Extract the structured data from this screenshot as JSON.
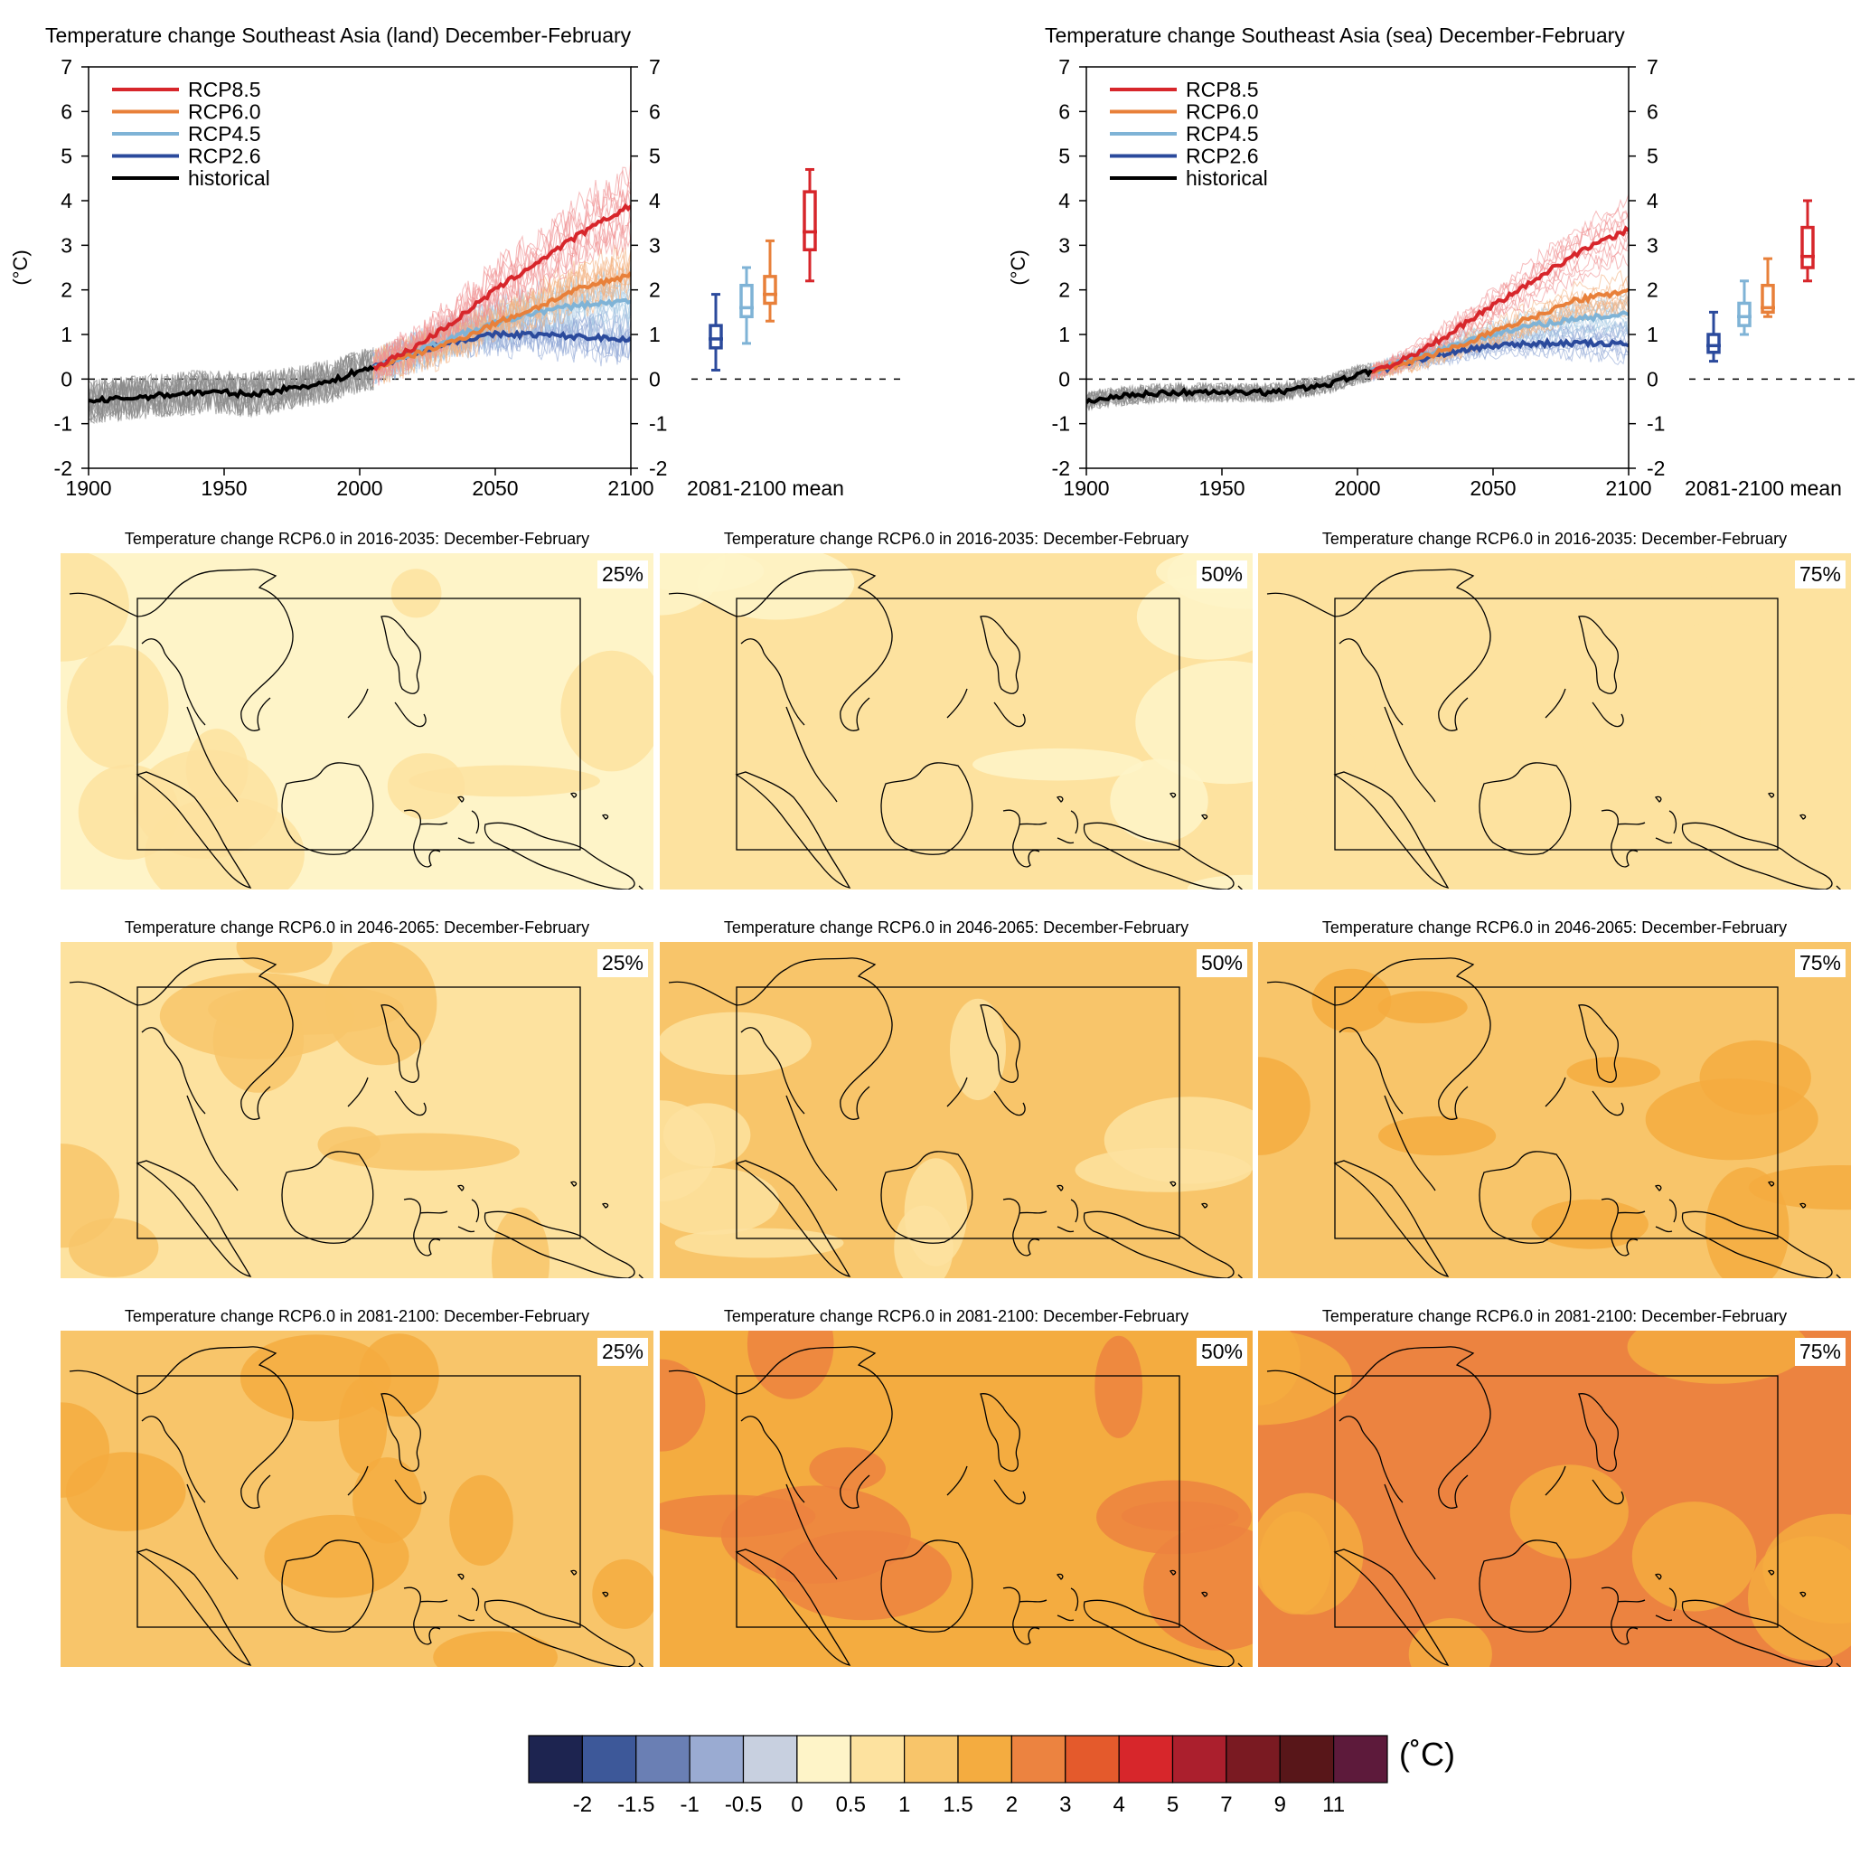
{
  "chart_data": [
    {
      "type": "line",
      "title": "Temperature change Southeast Asia (land) December-February",
      "ylabel": "(°C)",
      "xlim": [
        1900,
        2100
      ],
      "ylim": [
        -2,
        7
      ],
      "xticks": [
        1900,
        1950,
        2000,
        2050,
        2100
      ],
      "yticks": [
        -2,
        -1,
        0,
        1,
        2,
        3,
        4,
        5,
        6,
        7
      ],
      "legend": [
        "RCP8.5",
        "RCP6.0",
        "RCP4.5",
        "RCP2.6",
        "historical"
      ],
      "legend_position": "top-left",
      "box_label": "2081-2100 mean",
      "series": [
        {
          "name": "historical",
          "color": "#000000",
          "x": [
            1900,
            1910,
            1920,
            1930,
            1940,
            1950,
            1960,
            1970,
            1980,
            1990,
            2000,
            2005
          ],
          "y": [
            -0.5,
            -0.45,
            -0.4,
            -0.35,
            -0.3,
            -0.3,
            -0.35,
            -0.25,
            -0.15,
            -0.05,
            0.2,
            0.25
          ]
        },
        {
          "name": "RCP2.6",
          "color": "#2b4a9c",
          "x": [
            2005,
            2020,
            2035,
            2050,
            2065,
            2080,
            2100
          ],
          "y": [
            0.25,
            0.6,
            0.85,
            1.0,
            1.0,
            0.95,
            0.9
          ]
        },
        {
          "name": "RCP4.5",
          "color": "#7fb3d6",
          "x": [
            2005,
            2020,
            2035,
            2050,
            2065,
            2080,
            2100
          ],
          "y": [
            0.25,
            0.6,
            0.95,
            1.25,
            1.5,
            1.65,
            1.75
          ]
        },
        {
          "name": "RCP6.0",
          "color": "#e8803a",
          "x": [
            2005,
            2020,
            2035,
            2050,
            2065,
            2080,
            2100
          ],
          "y": [
            0.25,
            0.55,
            0.85,
            1.25,
            1.6,
            2.0,
            2.35
          ]
        },
        {
          "name": "RCP8.5",
          "color": "#d7262b",
          "x": [
            2005,
            2020,
            2035,
            2050,
            2065,
            2080,
            2100
          ],
          "y": [
            0.25,
            0.7,
            1.3,
            2.0,
            2.6,
            3.2,
            3.9
          ]
        }
      ],
      "boxes": [
        {
          "name": "RCP2.6",
          "color": "#2b4a9c",
          "min": 0.2,
          "q1": 0.7,
          "median": 0.9,
          "q3": 1.2,
          "max": 1.9
        },
        {
          "name": "RCP4.5",
          "color": "#7fb3d6",
          "min": 0.8,
          "q1": 1.4,
          "median": 1.6,
          "q3": 2.1,
          "max": 2.5
        },
        {
          "name": "RCP6.0",
          "color": "#e8803a",
          "min": 1.3,
          "q1": 1.7,
          "median": 1.9,
          "q3": 2.3,
          "max": 3.1
        },
        {
          "name": "RCP8.5",
          "color": "#d7262b",
          "min": 2.2,
          "q1": 2.9,
          "median": 3.3,
          "q3": 4.2,
          "max": 4.7
        }
      ]
    },
    {
      "type": "line",
      "title": "Temperature change Southeast Asia (sea) December-February",
      "ylabel": "(°C)",
      "xlim": [
        1900,
        2100
      ],
      "ylim": [
        -2,
        7
      ],
      "xticks": [
        1900,
        1950,
        2000,
        2050,
        2100
      ],
      "yticks": [
        -2,
        -1,
        0,
        1,
        2,
        3,
        4,
        5,
        6,
        7
      ],
      "legend": [
        "RCP8.5",
        "RCP6.0",
        "RCP4.5",
        "RCP2.6",
        "historical"
      ],
      "legend_position": "top-left",
      "box_label": "2081-2100 mean",
      "series": [
        {
          "name": "historical",
          "color": "#000000",
          "x": [
            1900,
            1910,
            1920,
            1930,
            1940,
            1950,
            1960,
            1970,
            1980,
            1990,
            2000,
            2005
          ],
          "y": [
            -0.5,
            -0.4,
            -0.35,
            -0.3,
            -0.3,
            -0.3,
            -0.3,
            -0.3,
            -0.2,
            -0.1,
            0.1,
            0.15
          ]
        },
        {
          "name": "RCP2.6",
          "color": "#2b4a9c",
          "x": [
            2005,
            2020,
            2035,
            2050,
            2065,
            2080,
            2100
          ],
          "y": [
            0.15,
            0.4,
            0.6,
            0.75,
            0.8,
            0.8,
            0.8
          ]
        },
        {
          "name": "RCP4.5",
          "color": "#7fb3d6",
          "x": [
            2005,
            2020,
            2035,
            2050,
            2065,
            2080,
            2100
          ],
          "y": [
            0.15,
            0.45,
            0.75,
            1.0,
            1.2,
            1.35,
            1.45
          ]
        },
        {
          "name": "RCP6.0",
          "color": "#e8803a",
          "x": [
            2005,
            2020,
            2035,
            2050,
            2065,
            2080,
            2100
          ],
          "y": [
            0.15,
            0.4,
            0.7,
            1.05,
            1.4,
            1.75,
            2.0
          ]
        },
        {
          "name": "RCP8.5",
          "color": "#d7262b",
          "x": [
            2005,
            2020,
            2035,
            2050,
            2065,
            2080,
            2100
          ],
          "y": [
            0.15,
            0.5,
            1.05,
            1.65,
            2.2,
            2.8,
            3.35
          ]
        }
      ],
      "boxes": [
        {
          "name": "RCP2.6",
          "color": "#2b4a9c",
          "min": 0.4,
          "q1": 0.6,
          "median": 0.75,
          "q3": 1.0,
          "max": 1.5
        },
        {
          "name": "RCP4.5",
          "color": "#7fb3d6",
          "min": 1.0,
          "q1": 1.2,
          "median": 1.4,
          "q3": 1.7,
          "max": 2.2
        },
        {
          "name": "RCP6.0",
          "color": "#e8803a",
          "min": 1.4,
          "q1": 1.5,
          "median": 1.6,
          "q3": 2.1,
          "max": 2.7
        },
        {
          "name": "RCP8.5",
          "color": "#d7262b",
          "min": 2.2,
          "q1": 2.5,
          "median": 2.75,
          "q3": 3.4,
          "max": 4.0
        }
      ]
    },
    {
      "type": "heatmap",
      "maps": [
        {
          "title": "Temperature change RCP6.0 in 2016-2035: December-February",
          "percentile": "25%",
          "background": "#fef4c8",
          "patch": "#fde29f"
        },
        {
          "title": "Temperature change RCP6.0 in 2016-2035: December-February",
          "percentile": "50%",
          "background": "#fde29f",
          "patch": "#fef4c8"
        },
        {
          "title": "Temperature change RCP6.0 in 2016-2035: December-February",
          "percentile": "75%",
          "background": "#fde29f",
          "patch": "#fde29f"
        },
        {
          "title": "Temperature change RCP6.0 in 2046-2065: December-February",
          "percentile": "25%",
          "background": "#fde29f",
          "patch": "#f8c56a"
        },
        {
          "title": "Temperature change RCP6.0 in 2046-2065: December-February",
          "percentile": "50%",
          "background": "#f8c56a",
          "patch": "#fde29f"
        },
        {
          "title": "Temperature change RCP6.0 in 2046-2065: December-February",
          "percentile": "75%",
          "background": "#f8c56a",
          "patch": "#f4ac40"
        },
        {
          "title": "Temperature change RCP6.0 in 2081-2100: December-February",
          "percentile": "25%",
          "background": "#f8c56a",
          "patch": "#f4ac40"
        },
        {
          "title": "Temperature change RCP6.0 in 2081-2100: December-February",
          "percentile": "50%",
          "background": "#f4ac40",
          "patch": "#ec8340"
        },
        {
          "title": "Temperature change RCP6.0 in 2081-2100: December-February",
          "percentile": "75%",
          "background": "#ec8340",
          "patch": "#f4ac40"
        }
      ],
      "colorbar": {
        "unit": "(˚C)",
        "labels": [
          "-2",
          "-1.5",
          "-1",
          "-0.5",
          "0",
          "0.5",
          "1",
          "1.5",
          "2",
          "3",
          "4",
          "5",
          "7",
          "9",
          "11"
        ],
        "colors": [
          "#1d2450",
          "#3d5899",
          "#6a7fb4",
          "#9aabd2",
          "#c8d0e0",
          "#fef4c8",
          "#fde29f",
          "#f8c56a",
          "#f4ac40",
          "#ec8340",
          "#e45a2c",
          "#d7262b",
          "#ab1f2d",
          "#7a1a22",
          "#581619",
          "#5d1a3b"
        ]
      }
    }
  ]
}
